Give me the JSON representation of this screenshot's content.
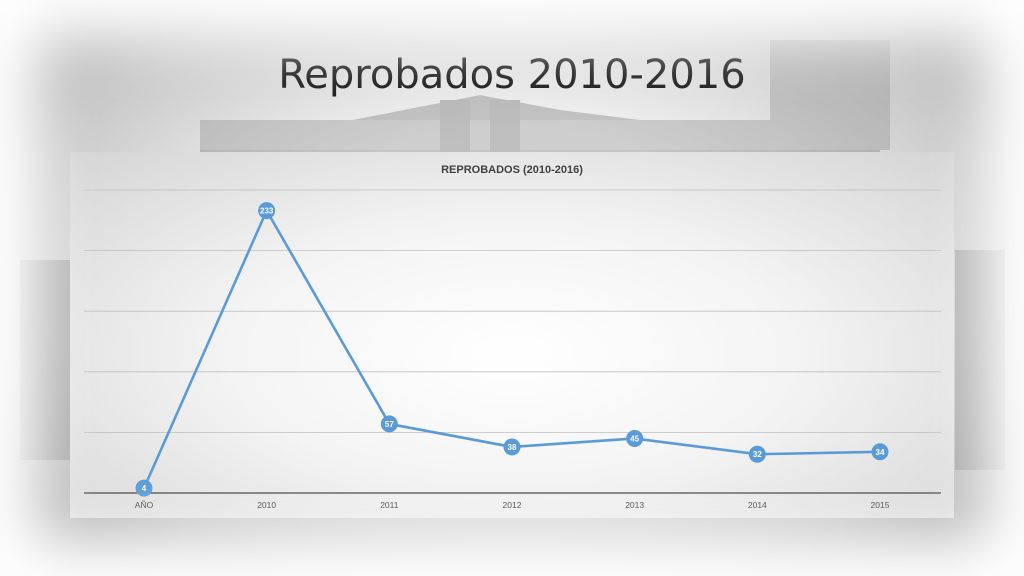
{
  "slide": {
    "title": "Reprobados 2010-2016"
  },
  "chart_data": {
    "type": "line",
    "title": "REPROBADOS (2010-2016)",
    "categories": [
      "AÑO",
      "2010",
      "2011",
      "2012",
      "2013",
      "2014",
      "2015"
    ],
    "series": [
      {
        "values": [
          4,
          233,
          57,
          38,
          45,
          32,
          34
        ]
      }
    ],
    "ylim": [
      0,
      250
    ],
    "y_gridlines": [
      0,
      50,
      100,
      150,
      200,
      250
    ],
    "y_tick_labels_visible": false,
    "grid": true,
    "data_labels": true,
    "legend": "none",
    "colors": {
      "line": "#5b9bd5",
      "marker": "#5b9bd5",
      "gridline": "#bfbfbf",
      "axis": "#404040"
    }
  }
}
